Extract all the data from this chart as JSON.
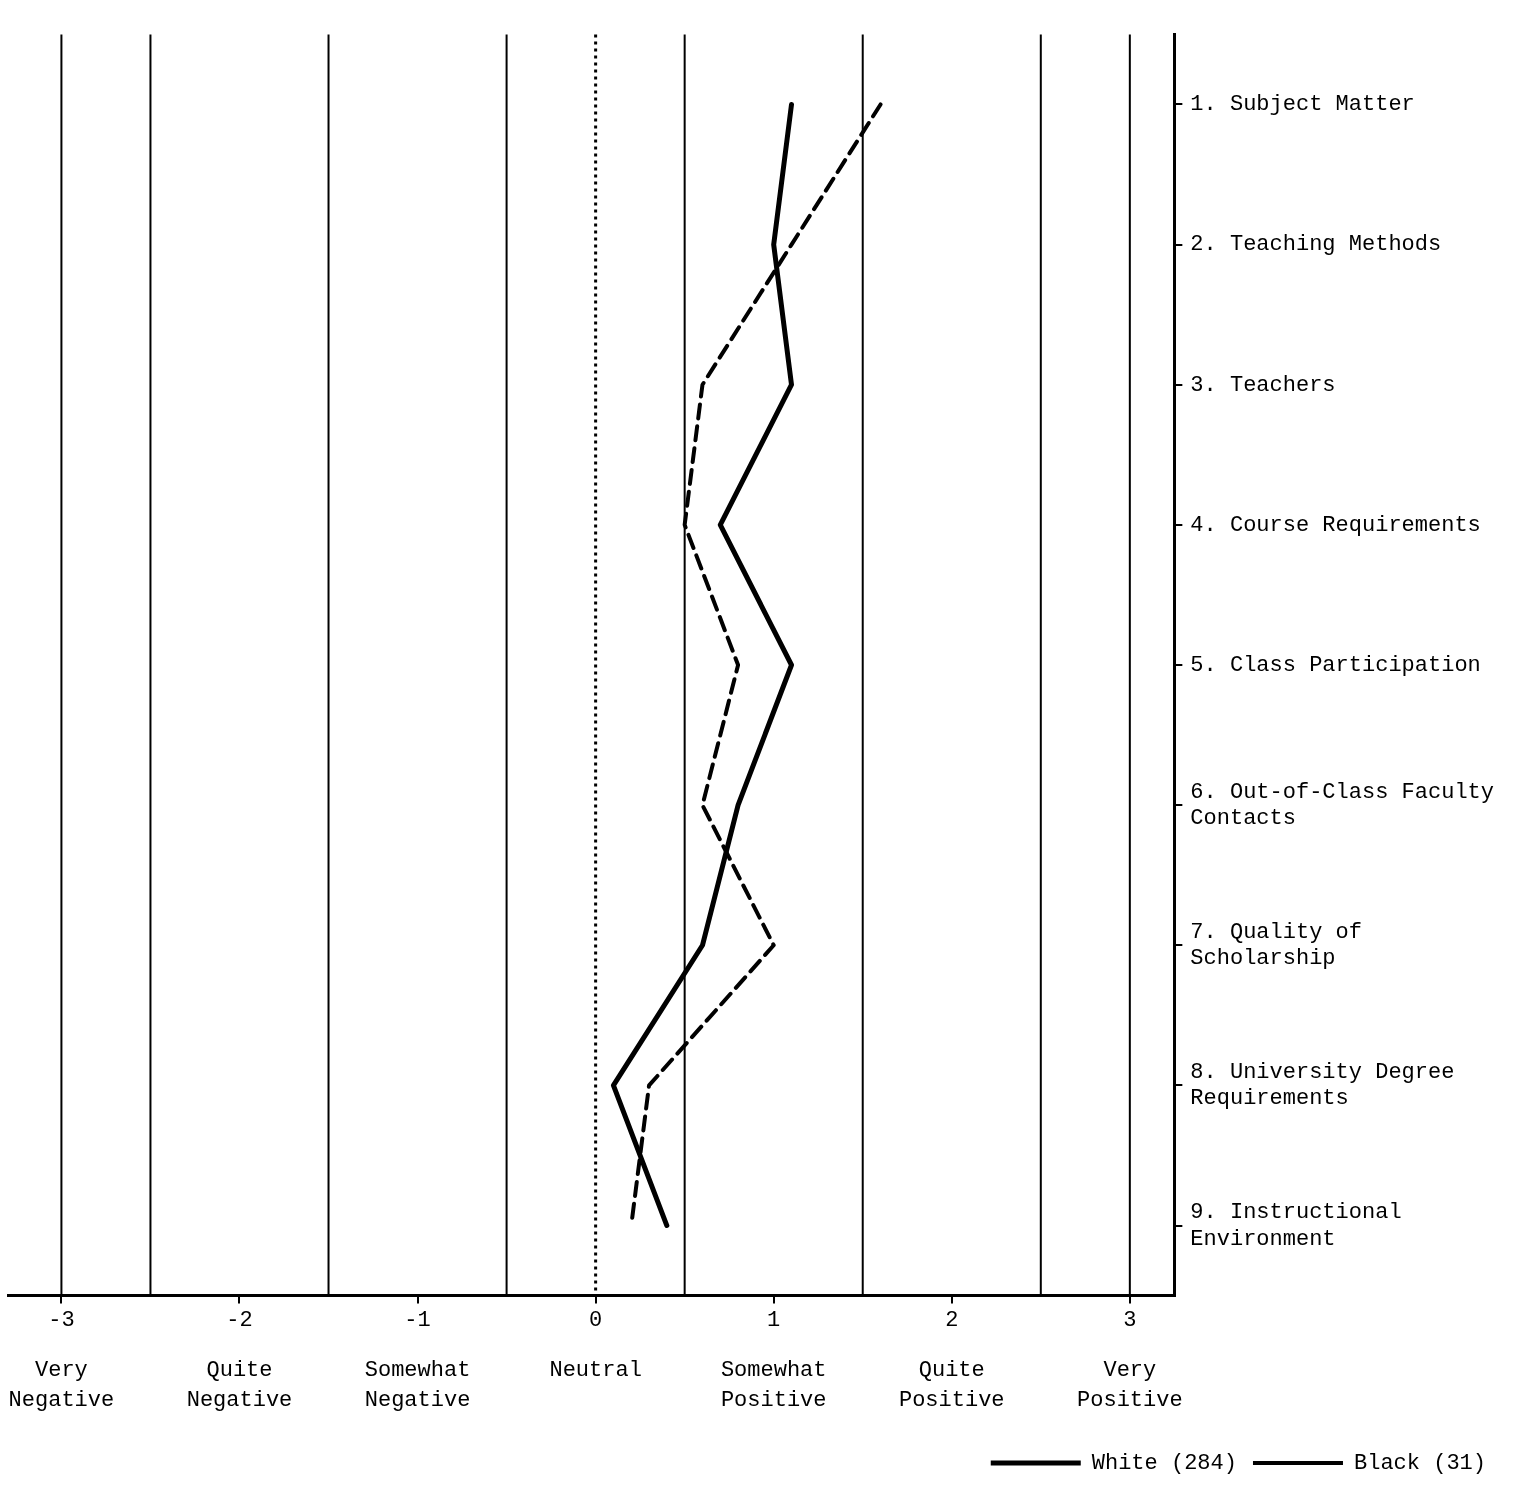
{
  "chart_data": {
    "type": "line",
    "orientation": "horizontal",
    "categories": [
      "1. Subject Matter",
      "2. Teaching Methods",
      "3. Teachers",
      "4. Course Requirements",
      "5. Class Participation",
      "6. Out-of-Class Faculty Contacts",
      "7. Quality of Scholarship",
      "8. University Degree Requirements",
      "9. Instructional Environment"
    ],
    "series": [
      {
        "name": "White (284)",
        "color": "#000000",
        "line_style": "solid",
        "values": [
          1.1,
          1.0,
          1.1,
          0.7,
          1.1,
          0.8,
          0.6,
          0.1,
          0.4
        ]
      },
      {
        "name": "Black (31)",
        "color": "#000000",
        "line_style": "dashed",
        "values": [
          1.6,
          1.1,
          0.6,
          0.5,
          0.8,
          0.6,
          1.0,
          0.3,
          0.2
        ]
      }
    ],
    "xlim": [
      -3.3,
      3.25
    ],
    "xticks": [
      -3,
      -2,
      -1,
      0,
      1,
      2,
      3
    ],
    "annotations": [
      "Very Negative",
      "Quite Negative",
      "Somewhat Negative",
      "Neutral",
      "Somewhat Positive",
      "Quite Positive",
      "Very Positive"
    ],
    "ref_lines": [
      {
        "axis": "x",
        "value": -3,
        "color": "#000000",
        "line_style": "solid"
      },
      {
        "axis": "x",
        "value": -2.5,
        "color": "#000000",
        "line_style": "solid"
      },
      {
        "axis": "x",
        "value": -1.5,
        "color": "#000000",
        "line_style": "solid"
      },
      {
        "axis": "x",
        "value": -0.5,
        "color": "#000000",
        "line_style": "solid"
      },
      {
        "axis": "x",
        "value": 0,
        "color": "#000000",
        "line_style": "dotted"
      },
      {
        "axis": "x",
        "value": 0.5,
        "color": "#000000",
        "line_style": "solid"
      },
      {
        "axis": "x",
        "value": 1.5,
        "color": "#000000",
        "line_style": "solid"
      },
      {
        "axis": "x",
        "value": 2.5,
        "color": "#000000",
        "line_style": "solid"
      },
      {
        "axis": "x",
        "value": 3,
        "color": "#000000",
        "line_style": "solid"
      }
    ],
    "grid": false,
    "legend": "bottom right",
    "marker": "none"
  }
}
